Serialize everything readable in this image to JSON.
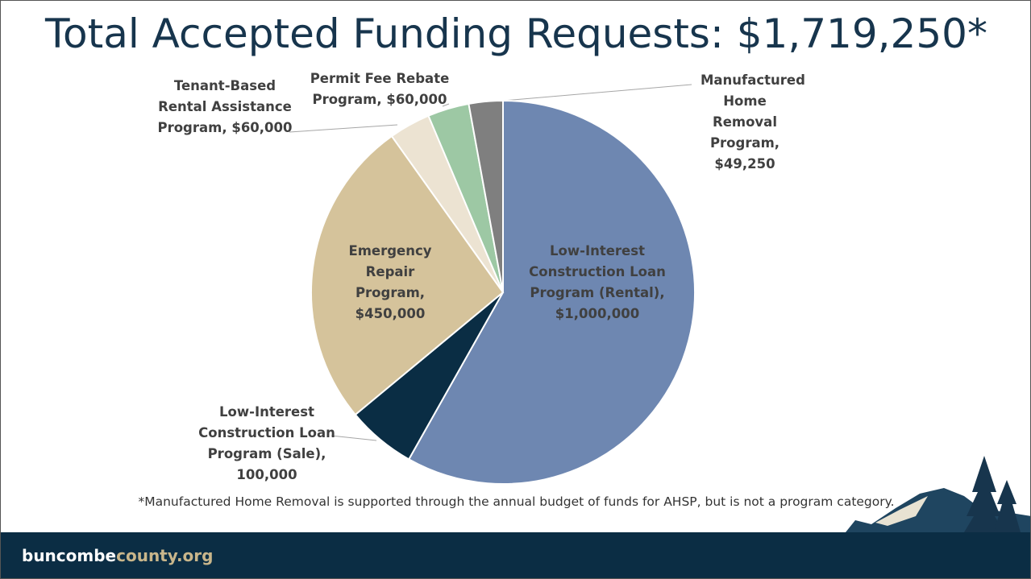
{
  "chart_data": {
    "type": "pie",
    "title": "Total Accepted Funding Requests: $1,719,250*",
    "categories": [
      "Low-Interest Construction Loan Program (Rental), $1,000,000",
      "Low-Interest Construction Loan Program (Sale), 100,000",
      "Emergency Repair Program, $450,000",
      "Tenant-Based Rental Assistance Program, $60,000",
      "Permit Fee Rebate Program, $60,000",
      "Manufactured Home Removal Program, $49,250"
    ],
    "values": [
      1000000,
      100000,
      450000,
      60000,
      60000,
      49250
    ],
    "colors": [
      "#6e87b1",
      "#0a2d44",
      "#d5c39b",
      "#ece3d2",
      "#9dc8a4",
      "#7f7f7f"
    ],
    "note": "*Manufactured Home Removal is supported through the annual budget of funds for AHSP, but is not a program category."
  },
  "footer": {
    "brand": "buncombe",
    "domain": "county.org"
  }
}
